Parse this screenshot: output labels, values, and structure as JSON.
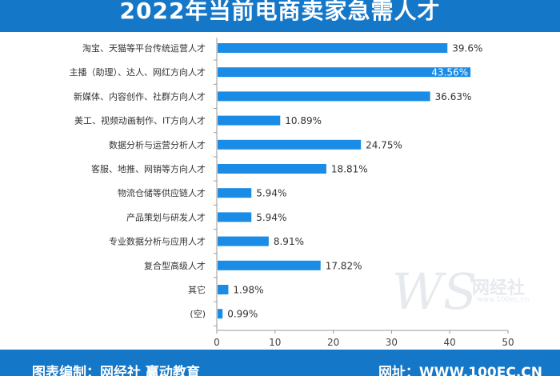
{
  "chart_data": {
    "type": "bar",
    "orientation": "horizontal",
    "title": "2022年当前电商卖家急需人才",
    "categories": [
      "淘宝、天猫等平台传统运营人才",
      "主播（助理）、达人、网红方向人才",
      "新媒体、内容创作、社群方向人才",
      "美工、视频动画制作、IT方向人才",
      "数据分析与运营分析人才",
      "客服、地推、网销等方向人才",
      "物流仓储等供应链人才",
      "产品策划与研发人才",
      "专业数据分析与应用人才",
      "复合型高级人才",
      "其它",
      "(空)"
    ],
    "values": [
      39.6,
      43.56,
      36.63,
      10.89,
      24.75,
      18.81,
      5.94,
      5.94,
      8.91,
      17.82,
      1.98,
      0.99
    ],
    "value_labels": [
      "39.6%",
      "43.56%",
      "36.63%",
      "10.89%",
      "24.75%",
      "18.81%",
      "5.94%",
      "5.94%",
      "8.91%",
      "17.82%",
      "1.98%",
      "0.99%"
    ],
    "xlim": [
      0,
      50
    ],
    "xticks": [
      0,
      10,
      20,
      30,
      40,
      50
    ],
    "grid": false,
    "bar_color": "#1a8ce6"
  },
  "footer": {
    "left": "图表编制：网经社 赢动教育",
    "right": "网址：WWW.100EC.CN"
  },
  "watermark": {
    "main": "WS",
    "cn": "网经社",
    "url": "www.100ec.cn"
  },
  "colors": {
    "header": "#1577c8",
    "bar": "#1a8ce6",
    "axis": "#999999"
  }
}
